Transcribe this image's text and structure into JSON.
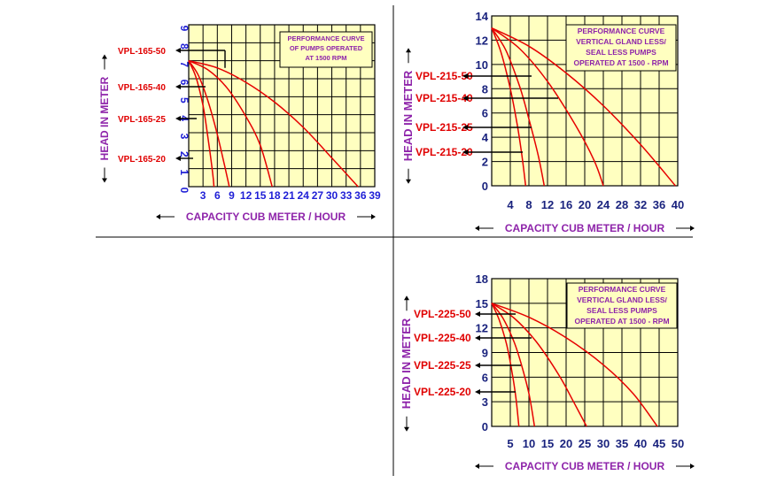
{
  "colors": {
    "plot_bg": "#ffffc0",
    "grid": "#000000",
    "curve": "#e60000",
    "tick_blue": "#1f1fd6",
    "tick_navy": "#1a237e",
    "purple": "#8e24aa",
    "model_red": "#e00000",
    "divider": "#000000"
  },
  "chart_data": [
    {
      "type": "line",
      "title": "PERFORMANCE CURVE OF PUMPS OPERATED AT 1500 RPM",
      "title_lines": [
        "PERFORMANCE CURVE",
        "OF PUMPS OPERATED",
        "AT 1500 RPM"
      ],
      "xlabel": "CAPACITY CUB METER / HOUR",
      "ylabel": "HEAD IN METER",
      "xlim": [
        0,
        39
      ],
      "ylim": [
        0,
        9
      ],
      "x_ticks": [
        "3",
        "6",
        "9",
        "12",
        "15",
        "18",
        "21",
        "24",
        "27",
        "30",
        "33",
        "36",
        "39"
      ],
      "y_ticks": [
        "0",
        "1",
        "2",
        "3",
        "4",
        "5",
        "6",
        "7",
        "8",
        "9"
      ],
      "grid": true,
      "series": [
        {
          "name": "VPL-165-50",
          "points": [
            [
              0,
              7
            ],
            [
              6,
              6.6
            ],
            [
              12,
              5.8
            ],
            [
              18,
              4.7
            ],
            [
              24,
              3.3
            ],
            [
              30,
              1.6
            ],
            [
              35.5,
              0
            ]
          ]
        },
        {
          "name": "VPL-165-40",
          "points": [
            [
              0,
              7
            ],
            [
              4,
              6.5
            ],
            [
              8,
              5.5
            ],
            [
              12,
              3.9
            ],
            [
              15,
              2.3
            ],
            [
              17.5,
              0
            ]
          ]
        },
        {
          "name": "VPL-165-25",
          "points": [
            [
              0,
              7
            ],
            [
              2,
              6.2
            ],
            [
              4,
              4.8
            ],
            [
              6,
              2.9
            ],
            [
              7.5,
              1.2
            ],
            [
              8.5,
              0
            ]
          ]
        },
        {
          "name": "VPL-165-20",
          "points": [
            [
              0,
              7
            ],
            [
              1.5,
              6.1
            ],
            [
              3,
              4.5
            ],
            [
              4,
              2.8
            ],
            [
              5,
              0.8
            ],
            [
              5.3,
              0
            ]
          ]
        }
      ]
    },
    {
      "type": "line",
      "title": "PERFORMANCE CURVE VERTICAL GLAND LESS/ SEAL LESS PUMPS OPERATED AT 1500 - RPM",
      "title_lines": [
        "PERFORMANCE CURVE",
        "VERTICAL GLAND LESS/",
        "SEAL LESS  PUMPS",
        "OPERATED AT 1500 - RPM"
      ],
      "xlabel": "CAPACITY CUB METER / HOUR",
      "ylabel": "HEAD IN METER",
      "xlim": [
        0,
        40
      ],
      "ylim": [
        0,
        14
      ],
      "x_ticks": [
        "4",
        "8",
        "12",
        "16",
        "20",
        "24",
        "28",
        "32",
        "36",
        "40"
      ],
      "y_ticks": [
        "0",
        "2",
        "4",
        "6",
        "8",
        "10",
        "12",
        "14"
      ],
      "grid": true,
      "series": [
        {
          "name": "VPL-215-50",
          "points": [
            [
              0,
              13
            ],
            [
              8,
              11.5
            ],
            [
              16,
              9.3
            ],
            [
              24,
              6.6
            ],
            [
              32,
              3.4
            ],
            [
              39.5,
              0
            ]
          ]
        },
        {
          "name": "VPL-215-40",
          "points": [
            [
              0,
              13
            ],
            [
              6,
              11.3
            ],
            [
              12,
              8.6
            ],
            [
              18,
              5
            ],
            [
              22,
              2.1
            ],
            [
              24,
              0
            ]
          ]
        },
        {
          "name": "VPL-215-25",
          "points": [
            [
              0,
              13
            ],
            [
              3,
              11.2
            ],
            [
              6,
              8.2
            ],
            [
              8,
              5.5
            ],
            [
              10,
              2.5
            ],
            [
              11.3,
              0
            ]
          ]
        },
        {
          "name": "VPL-215-20",
          "points": [
            [
              0,
              13
            ],
            [
              2,
              11
            ],
            [
              4,
              8
            ],
            [
              5.5,
              5
            ],
            [
              6.5,
              2.5
            ],
            [
              7.3,
              0
            ]
          ]
        }
      ]
    },
    {
      "type": "line",
      "title": "PERFORMANCE CURVE VERTICAL GLAND LESS/ SEAL LESS PUMPS OPERATED AT 1500 - RPM",
      "title_lines": [
        "PERFORMANCE CURVE",
        "VERTICAL GLAND LESS/",
        "SEAL LESS  PUMPS",
        "OPERATED AT 1500 - RPM"
      ],
      "xlabel": "CAPACITY CUB METER / HOUR",
      "ylabel": "HEAD IN METER",
      "xlim": [
        0,
        50
      ],
      "ylim": [
        0,
        18
      ],
      "x_ticks": [
        "5",
        "10",
        "15",
        "20",
        "25",
        "30",
        "35",
        "40",
        "45",
        "50"
      ],
      "y_ticks": [
        "0",
        "3",
        "6",
        "9",
        "12",
        "15",
        "18"
      ],
      "grid": true,
      "series": [
        {
          "name": "VPL-225-50",
          "points": [
            [
              0,
              15
            ],
            [
              10,
              13.3
            ],
            [
              20,
              10.8
            ],
            [
              30,
              7.5
            ],
            [
              38,
              4
            ],
            [
              44.5,
              0
            ]
          ]
        },
        {
          "name": "VPL-225-40",
          "points": [
            [
              0,
              15
            ],
            [
              6,
              13.2
            ],
            [
              12,
              10.3
            ],
            [
              18,
              6.3
            ],
            [
              22,
              3
            ],
            [
              25.5,
              0
            ]
          ]
        },
        {
          "name": "VPL-225-25",
          "points": [
            [
              0,
              15
            ],
            [
              3,
              13.2
            ],
            [
              6,
              10.3
            ],
            [
              8,
              7.5
            ],
            [
              10,
              4
            ],
            [
              11.5,
              0
            ]
          ]
        },
        {
          "name": "VPL-225-20",
          "points": [
            [
              0,
              15
            ],
            [
              2,
              13
            ],
            [
              4,
              10
            ],
            [
              5.5,
              6.5
            ],
            [
              6.5,
              3.5
            ],
            [
              7.3,
              0
            ]
          ]
        }
      ]
    }
  ]
}
